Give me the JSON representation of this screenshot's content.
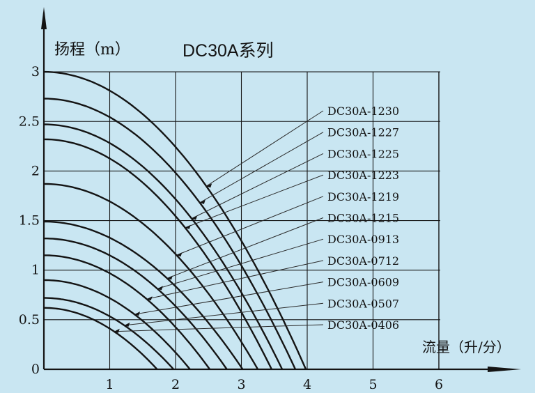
{
  "colors": {
    "background": "#c9e6f2",
    "ink": "#141414",
    "leader": "#2a2a2a"
  },
  "chart_data": {
    "type": "line",
    "title": "DC30A系列",
    "ylabel": "扬程（m）",
    "xlabel": "流量（升/分）",
    "xlim": [
      0,
      6
    ],
    "ylim": [
      0,
      3
    ],
    "x_ticks": [
      1,
      2,
      3,
      4,
      5,
      6
    ],
    "y_ticks": [
      "0",
      "0.5",
      "1",
      "1.5",
      "2",
      "2.5",
      "3"
    ],
    "grid": true,
    "series": [
      {
        "name": "DC30A-1230",
        "head_max": 3.0,
        "flow_max": 3.98
      },
      {
        "name": "DC30A-1227",
        "head_max": 2.73,
        "flow_max": 3.82
      },
      {
        "name": "DC30A-1225",
        "head_max": 2.47,
        "flow_max": 3.62
      },
      {
        "name": "DC30A-1223",
        "head_max": 2.32,
        "flow_max": 3.46
      },
      {
        "name": "DC30A-1219",
        "head_max": 1.87,
        "flow_max": 3.25
      },
      {
        "name": "DC30A-1215",
        "head_max": 1.49,
        "flow_max": 3.02
      },
      {
        "name": "DC30A-0913",
        "head_max": 1.32,
        "flow_max": 2.78
      },
      {
        "name": "DC30A-0712",
        "head_max": 1.15,
        "flow_max": 2.52
      },
      {
        "name": "DC30A-0609",
        "head_max": 0.9,
        "flow_max": 2.22
      },
      {
        "name": "DC30A-0507",
        "head_max": 0.72,
        "flow_max": 1.97
      },
      {
        "name": "DC30A-0406",
        "head_max": 0.62,
        "flow_max": 1.72
      }
    ]
  }
}
